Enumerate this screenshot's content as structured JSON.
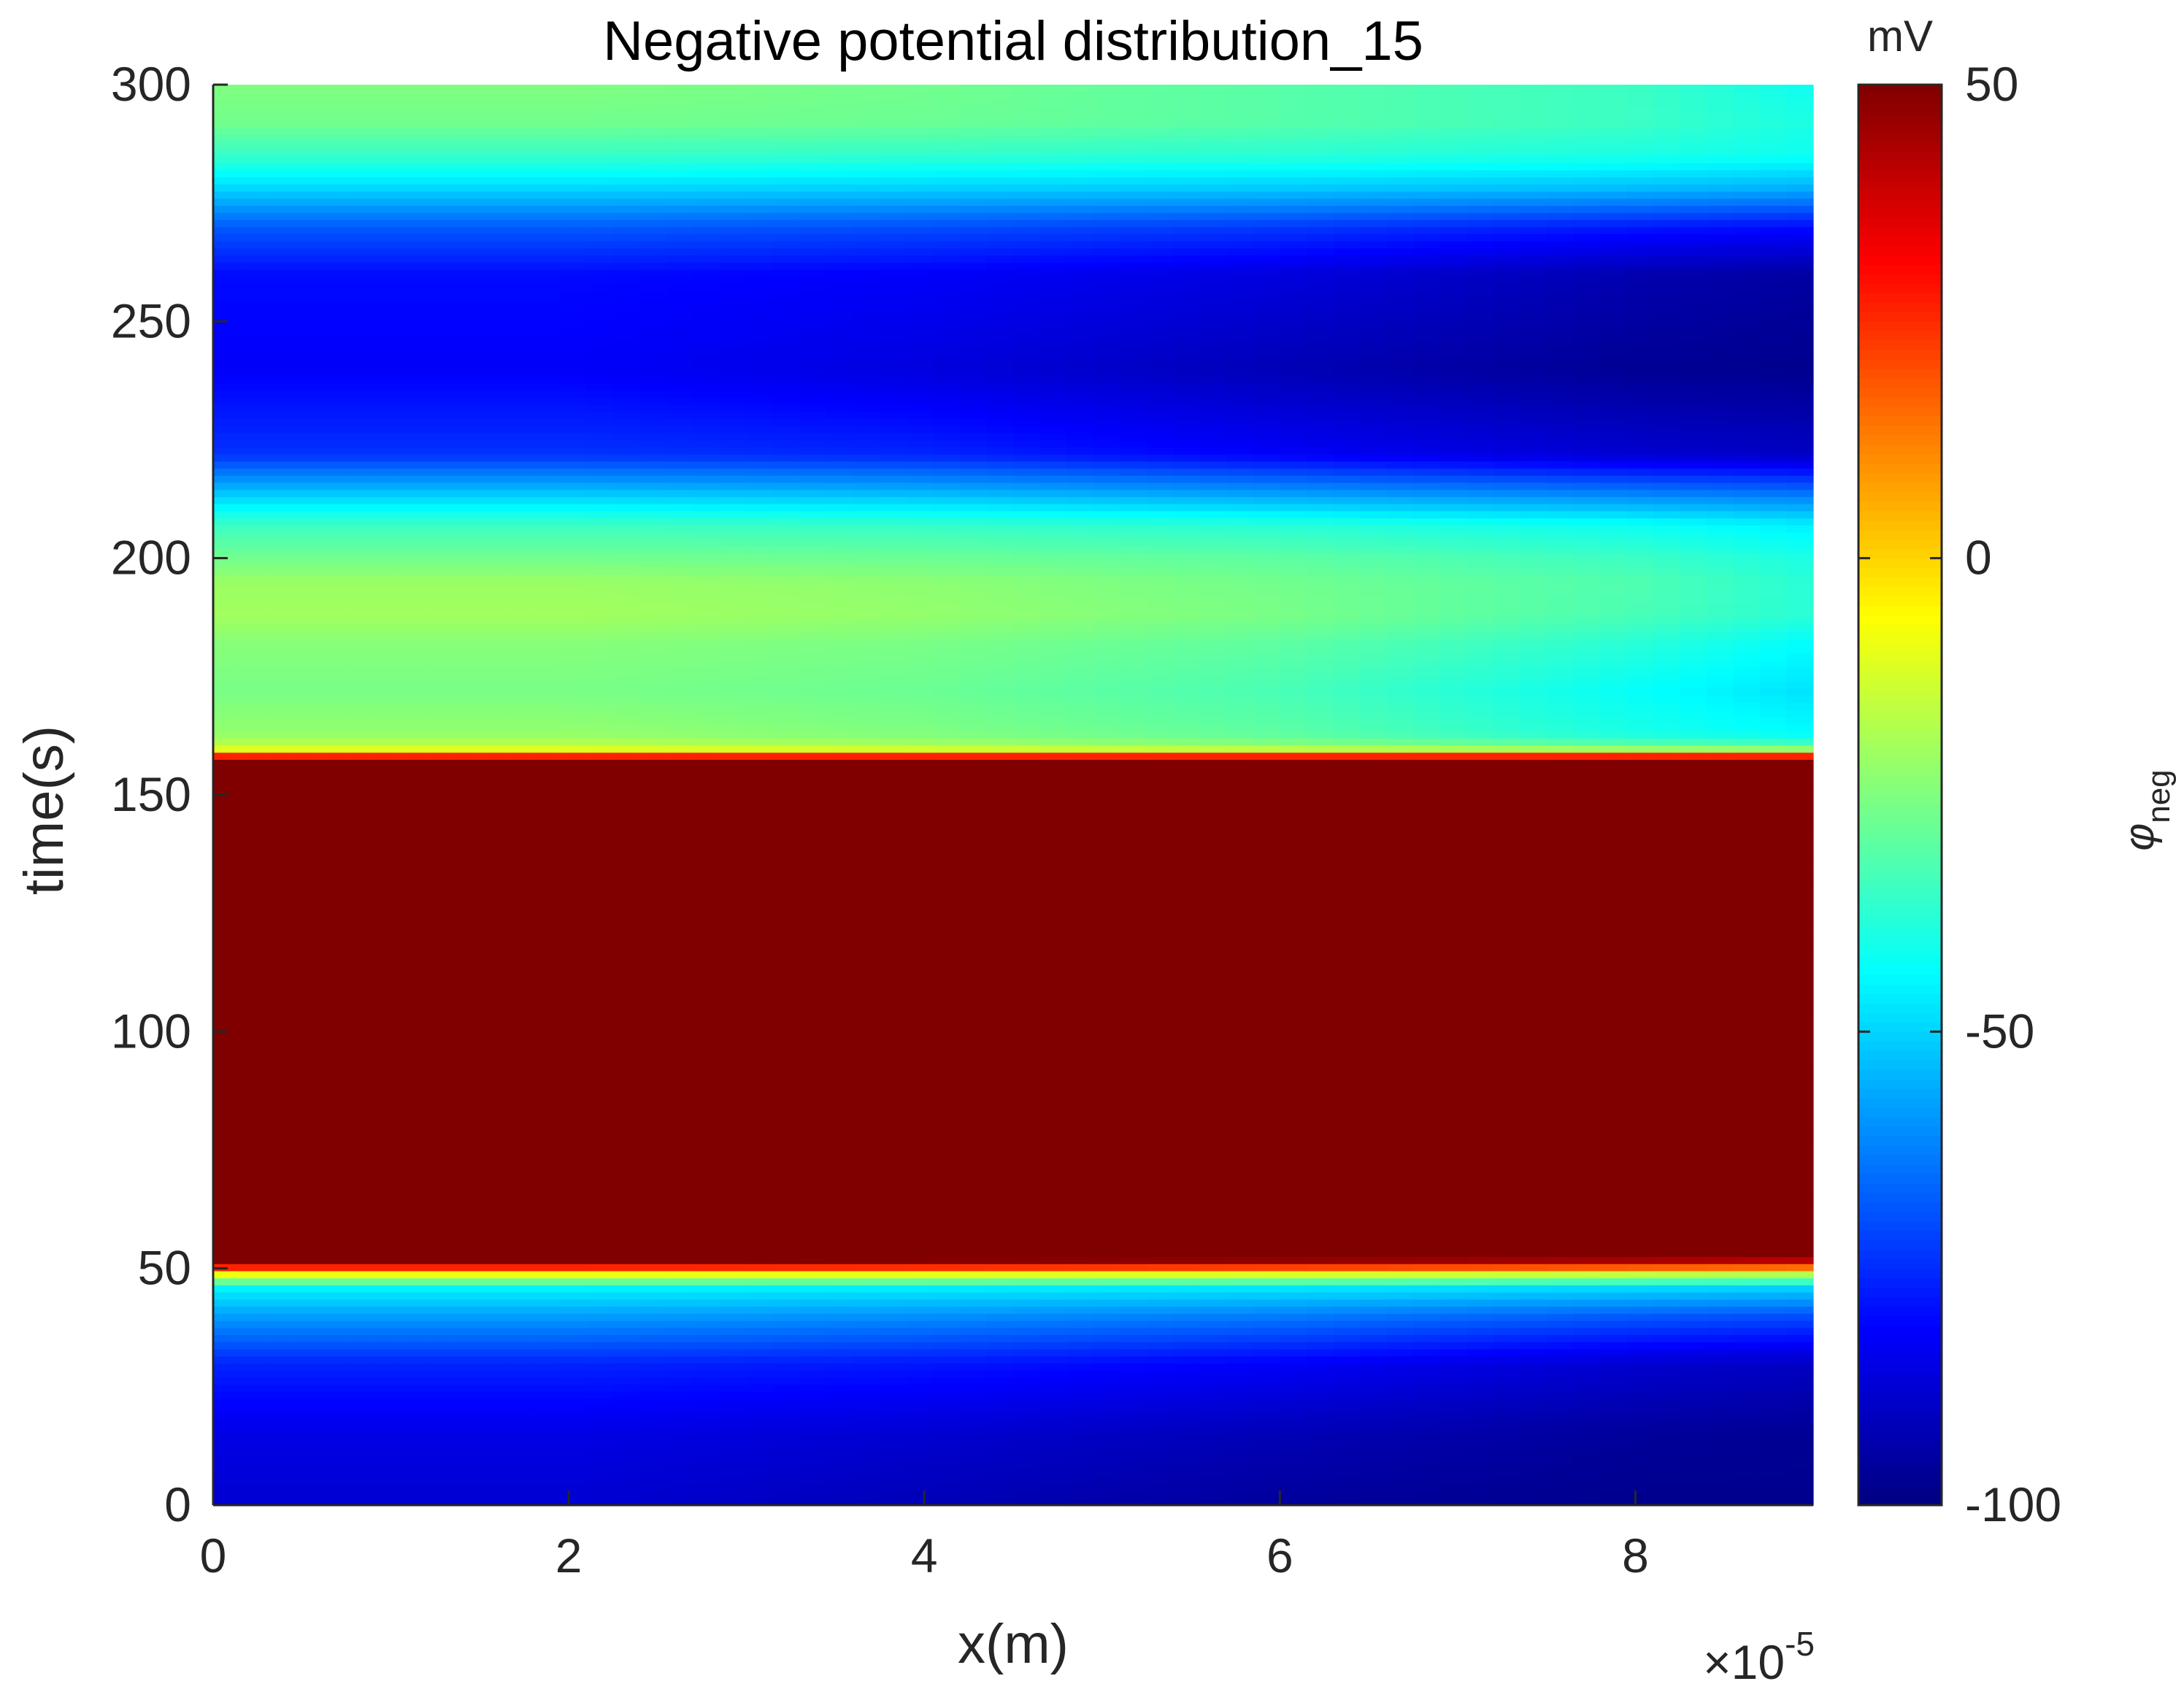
{
  "chart_data": {
    "type": "heatmap",
    "title": "Negative potential distribution_15",
    "xlabel": "x(m)",
    "ylabel": "time(s)",
    "x_exponent_label": "×10",
    "x_exponent_power": "-5",
    "x_scale": 1e-05,
    "xlim": [
      0,
      9
    ],
    "ylim": [
      0,
      300
    ],
    "x_ticks": [
      0,
      2,
      4,
      6,
      8
    ],
    "x_tick_labels": [
      "0",
      "2",
      "4",
      "6",
      "8"
    ],
    "y_ticks": [
      0,
      50,
      100,
      150,
      200,
      250,
      300
    ],
    "y_tick_labels": [
      "0",
      "50",
      "100",
      "150",
      "200",
      "250",
      "300"
    ],
    "colorbar": {
      "colormap": "jet",
      "limits": [
        -100,
        50
      ],
      "ticks": [
        -100,
        -50,
        0,
        50
      ],
      "tick_labels": [
        "-100",
        "-50",
        "0",
        "50"
      ],
      "unit": "mV",
      "label_symbol": "φ",
      "label_subscript": "neg"
    },
    "grid": false,
    "x_samples": [
      0,
      2,
      4,
      6,
      8,
      9
    ],
    "profiles": [
      {
        "t": 0,
        "values": [
          -88,
          -88,
          -92,
          -96,
          -98,
          -98
        ]
      },
      {
        "t": 15,
        "values": [
          -85,
          -85,
          -88,
          -92,
          -96,
          -97
        ]
      },
      {
        "t": 30,
        "values": [
          -76,
          -76,
          -78,
          -82,
          -88,
          -90
        ]
      },
      {
        "t": 40,
        "values": [
          -58,
          -58,
          -60,
          -63,
          -68,
          -70
        ]
      },
      {
        "t": 46,
        "values": [
          -45,
          -45,
          -46,
          -47,
          -49,
          -50
        ]
      },
      {
        "t": 49,
        "values": [
          -5,
          -5,
          -6,
          -8,
          -12,
          -15
        ]
      },
      {
        "t": 51,
        "values": [
          45,
          45,
          43,
          40,
          36,
          33
        ]
      },
      {
        "t": 53,
        "values": [
          60,
          60,
          60,
          60,
          58,
          56
        ]
      },
      {
        "t": 156,
        "values": [
          60,
          60,
          60,
          60,
          60,
          60
        ]
      },
      {
        "t": 158,
        "values": [
          35,
          35,
          35,
          35,
          35,
          35
        ]
      },
      {
        "t": 159,
        "values": [
          0,
          0,
          0,
          0,
          0,
          0
        ]
      },
      {
        "t": 160,
        "values": [
          -15,
          -15,
          -18,
          -22,
          -28,
          -30
        ]
      },
      {
        "t": 163,
        "values": [
          -22,
          -22,
          -25,
          -30,
          -40,
          -44
        ]
      },
      {
        "t": 172,
        "values": [
          -26,
          -26,
          -28,
          -33,
          -43,
          -48
        ]
      },
      {
        "t": 182,
        "values": [
          -24,
          -24,
          -26,
          -30,
          -38,
          -44
        ]
      },
      {
        "t": 188,
        "values": [
          -20,
          -20,
          -22,
          -26,
          -33,
          -38
        ]
      },
      {
        "t": 195,
        "values": [
          -21,
          -21,
          -23,
          -27,
          -32,
          -38
        ]
      },
      {
        "t": 200,
        "values": [
          -27,
          -27,
          -28,
          -30,
          -35,
          -40
        ]
      },
      {
        "t": 207,
        "values": [
          -35,
          -35,
          -36,
          -38,
          -42,
          -46
        ]
      },
      {
        "t": 213,
        "values": [
          -50,
          -50,
          -52,
          -56,
          -60,
          -62
        ]
      },
      {
        "t": 222,
        "values": [
          -74,
          -74,
          -76,
          -82,
          -88,
          -90
        ]
      },
      {
        "t": 240,
        "values": [
          -82,
          -82,
          -86,
          -92,
          -97,
          -98
        ]
      },
      {
        "t": 260,
        "values": [
          -80,
          -80,
          -82,
          -86,
          -93,
          -95
        ]
      },
      {
        "t": 270,
        "values": [
          -68,
          -68,
          -70,
          -73,
          -78,
          -80
        ]
      },
      {
        "t": 278,
        "values": [
          -50,
          -50,
          -51,
          -52,
          -54,
          -56
        ]
      },
      {
        "t": 285,
        "values": [
          -36,
          -36,
          -37,
          -38,
          -40,
          -42
        ]
      },
      {
        "t": 292,
        "values": [
          -27,
          -27,
          -28,
          -31,
          -35,
          -40
        ]
      },
      {
        "t": 300,
        "values": [
          -25,
          -25,
          -27,
          -31,
          -35,
          -42
        ]
      }
    ]
  }
}
